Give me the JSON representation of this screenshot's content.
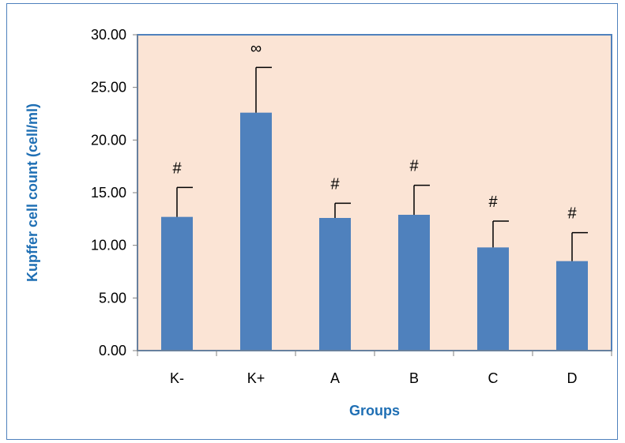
{
  "chart_data": {
    "type": "bar",
    "categories": [
      "K-",
      "K+",
      "A",
      "B",
      "C",
      "D"
    ],
    "values": [
      12.7,
      22.6,
      12.6,
      12.9,
      9.8,
      8.5
    ],
    "error_bars": [
      2.8,
      4.3,
      1.4,
      2.8,
      2.5,
      2.7
    ],
    "annotations": [
      "#",
      "∞",
      "#",
      "#",
      "#",
      "#"
    ],
    "xlabel": "Groups",
    "ylabel": "Kupffer cell count (cell/ml)",
    "ylim": [
      0,
      30
    ],
    "yticks": [
      "0.00",
      "5.00",
      "10.00",
      "15.00",
      "20.00",
      "25.00",
      "30.00"
    ],
    "grid": false,
    "legend": "none",
    "colors": {
      "bar": "#4f81bd",
      "plot_bg": "#fbe4d5",
      "axis_title": "#1f6fb4",
      "frame": "#4f81bd"
    }
  }
}
